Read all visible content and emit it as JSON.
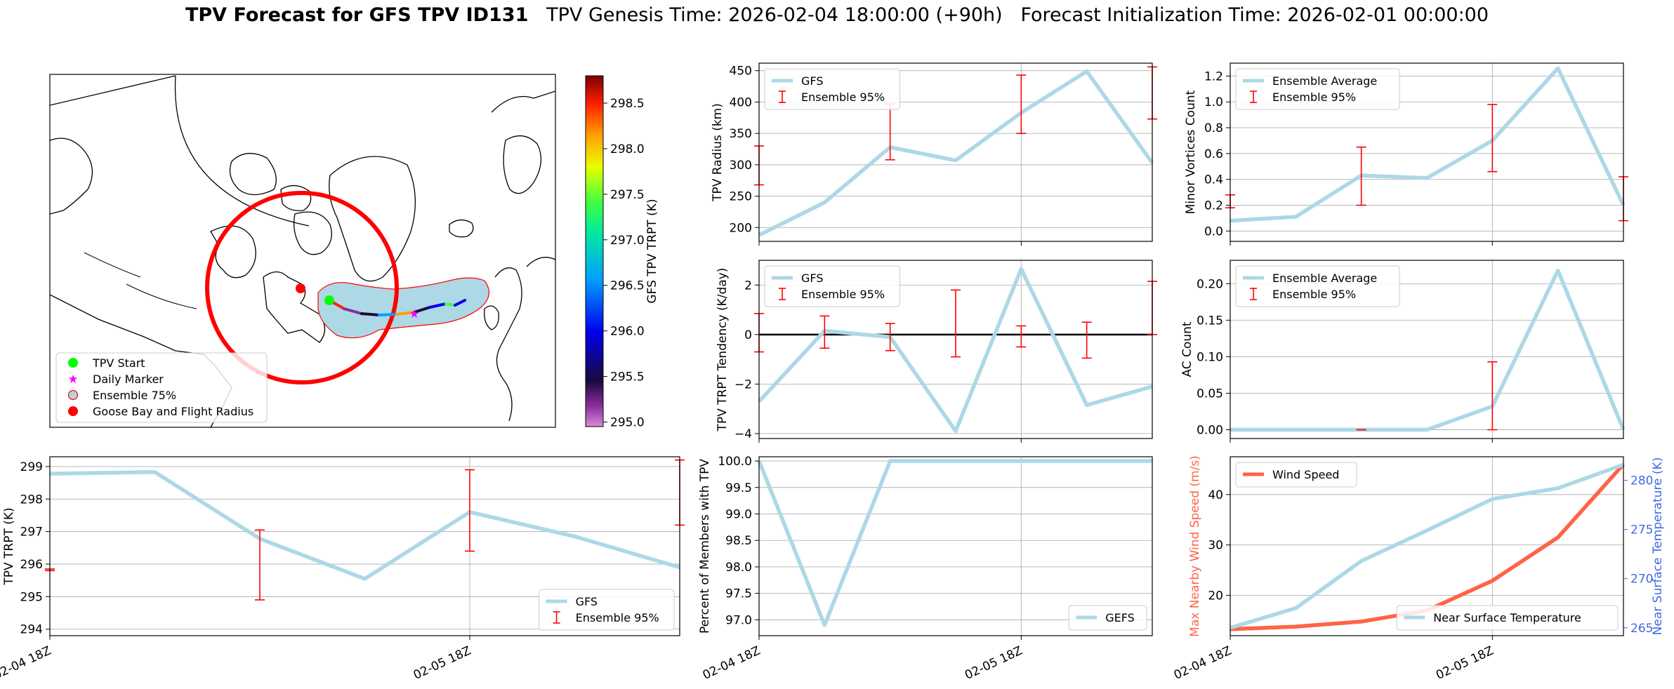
{
  "title": {
    "bold": "TPV Forecast for GFS TPV ID131",
    "genesis": "TPV Genesis Time: 2026-02-04 18:00:00 (+90h)",
    "init": "Forecast Initialization Time: 2026-02-01 00:00:00"
  },
  "colors": {
    "line": "#add8e6",
    "error": "#ff0000",
    "wind": "#ff6347",
    "temp_axis": "#4169e1",
    "wind_axis": "#ff6347",
    "zero_line": "#000000",
    "grid": "#b0b0b0",
    "circle": "#ff0000",
    "shade": "#add8e6",
    "start": "#00ff00",
    "marker": "#ff00ff"
  },
  "map": {
    "colorbar": {
      "label": "GFS TPV TRPT (K)",
      "min": 294.95,
      "max": 298.8,
      "ticks": [
        295.0,
        295.5,
        296.0,
        296.5,
        297.0,
        297.5,
        298.0,
        298.5
      ],
      "tick_labels": [
        "295.0",
        "295.5",
        "296.0",
        "296.5",
        "297.0",
        "297.5",
        "298.0",
        "298.5"
      ]
    },
    "legend": [
      {
        "label": "TPV Start",
        "marker": "circle",
        "color": "#00ff00"
      },
      {
        "label": "Daily Marker",
        "marker": "star",
        "color": "#ff00ff"
      },
      {
        "label": "Ensemble 75%",
        "marker": "ring",
        "color": "#add8e6"
      },
      {
        "label": "Goose Bay and Flight Radius",
        "marker": "circle",
        "color": "#ff0000"
      }
    ]
  },
  "x_tick_labels": [
    "02-04 18Z",
    "02-05 18Z"
  ],
  "chart_data": [
    {
      "id": "trpt",
      "type": "line",
      "title": "",
      "xlabel": "",
      "ylabel": "TPV TRPT (K)",
      "x": [
        0,
        6,
        12,
        18,
        24,
        30,
        36
      ],
      "xlim": [
        0,
        36
      ],
      "ylim": [
        293.8,
        299.3
      ],
      "yticks": [
        294,
        295,
        296,
        297,
        298,
        299
      ],
      "ytick_labels": [
        "294",
        "295",
        "296",
        "297",
        "298",
        "299"
      ],
      "xtick_values": [
        0,
        24
      ],
      "series": [
        {
          "name": "GFS",
          "values": [
            298.78,
            298.83,
            296.78,
            295.55,
            297.6,
            296.85,
            295.9
          ]
        }
      ],
      "errorbars": {
        "name": "Ensemble 95%",
        "points": [
          {
            "x": 0,
            "low": 295.8,
            "high": 295.85
          },
          {
            "x": 12,
            "low": 294.9,
            "high": 297.05
          },
          {
            "x": 24,
            "low": 296.4,
            "high": 298.9
          },
          {
            "x": 36,
            "low": 297.2,
            "high": 299.2
          }
        ]
      },
      "legend": {
        "loc": "lower-right",
        "entries": [
          {
            "label": "GFS",
            "kind": "line"
          },
          {
            "label": "Ensemble 95%",
            "kind": "errorbar"
          }
        ]
      },
      "xticklabels_shown": true
    },
    {
      "id": "radius",
      "type": "line",
      "ylabel": "TPV Radius (km)",
      "x": [
        0,
        6,
        12,
        18,
        24,
        30,
        36
      ],
      "xlim": [
        0,
        36
      ],
      "ylim": [
        178,
        462
      ],
      "yticks": [
        200,
        250,
        300,
        350,
        400,
        450
      ],
      "ytick_labels": [
        "200",
        "250",
        "300",
        "350",
        "400",
        "450"
      ],
      "xtick_values": [
        0,
        24
      ],
      "series": [
        {
          "name": "GFS",
          "values": [
            188,
            240,
            328,
            307,
            383,
            449,
            303
          ]
        }
      ],
      "errorbars": {
        "name": "Ensemble 95%",
        "points": [
          {
            "x": 0,
            "low": 268,
            "high": 330
          },
          {
            "x": 12,
            "low": 308,
            "high": 397
          },
          {
            "x": 24,
            "low": 350,
            "high": 443
          },
          {
            "x": 36,
            "low": 373,
            "high": 456
          }
        ]
      },
      "legend": {
        "loc": "upper-left",
        "entries": [
          {
            "label": "GFS",
            "kind": "line"
          },
          {
            "label": "Ensemble 95%",
            "kind": "errorbar"
          }
        ]
      },
      "xticklabels_shown": false
    },
    {
      "id": "tendency",
      "type": "line",
      "ylabel": "TPV TRPT Tendency (K/day)",
      "x": [
        0,
        6,
        12,
        18,
        24,
        30,
        36
      ],
      "xlim": [
        0,
        36
      ],
      "ylim": [
        -4.2,
        3.0
      ],
      "yticks": [
        -4,
        -2,
        0,
        2
      ],
      "ytick_labels": [
        "−4",
        "−2",
        "0",
        "2"
      ],
      "xtick_values": [
        0,
        24
      ],
      "zero_line": 0,
      "series": [
        {
          "name": "GFS",
          "values": [
            -2.7,
            0.15,
            -0.1,
            -3.9,
            2.65,
            -2.85,
            -2.1
          ]
        }
      ],
      "errorbars": {
        "name": "Ensemble 95%",
        "points": [
          {
            "x": 0,
            "low": -0.7,
            "high": 0.85
          },
          {
            "x": 6,
            "low": -0.55,
            "high": 0.75
          },
          {
            "x": 12,
            "low": -0.65,
            "high": 0.45
          },
          {
            "x": 18,
            "low": -0.9,
            "high": 1.8
          },
          {
            "x": 24,
            "low": -0.5,
            "high": 0.35
          },
          {
            "x": 30,
            "low": -0.95,
            "high": 0.5
          },
          {
            "x": 36,
            "low": 0.0,
            "high": 2.15
          }
        ]
      },
      "legend": {
        "loc": "upper-left",
        "entries": [
          {
            "label": "GFS",
            "kind": "line"
          },
          {
            "label": "Ensemble 95%",
            "kind": "errorbar"
          }
        ]
      },
      "xticklabels_shown": false
    },
    {
      "id": "members",
      "type": "line",
      "ylabel": "Percent of Members with TPV",
      "x": [
        0,
        6,
        12,
        18,
        24,
        30,
        36
      ],
      "xlim": [
        0,
        36
      ],
      "ylim": [
        96.7,
        100.08
      ],
      "yticks": [
        97.0,
        97.5,
        98.0,
        98.5,
        99.0,
        99.5,
        100.0
      ],
      "ytick_labels": [
        "97.0",
        "97.5",
        "98.0",
        "98.5",
        "99.0",
        "99.5",
        "100.0"
      ],
      "xtick_values": [
        0,
        24
      ],
      "series": [
        {
          "name": "GEFS",
          "values": [
            100.0,
            96.9,
            100.0,
            100.0,
            100.0,
            100.0,
            100.0
          ]
        }
      ],
      "legend": {
        "loc": "lower-right",
        "entries": [
          {
            "label": "GEFS",
            "kind": "line"
          }
        ]
      },
      "xticklabels_shown": true
    },
    {
      "id": "minor",
      "type": "line",
      "ylabel": "Minor Vortices Count",
      "x": [
        0,
        6,
        12,
        18,
        24,
        30,
        36
      ],
      "xlim": [
        0,
        36
      ],
      "ylim": [
        -0.08,
        1.3
      ],
      "yticks": [
        0.0,
        0.2,
        0.4,
        0.6,
        0.8,
        1.0,
        1.2
      ],
      "ytick_labels": [
        "0.0",
        "0.2",
        "0.4",
        "0.6",
        "0.8",
        "1.0",
        "1.2"
      ],
      "xtick_values": [
        0,
        24
      ],
      "series": [
        {
          "name": "Ensemble Average",
          "values": [
            0.08,
            0.11,
            0.43,
            0.41,
            0.7,
            1.26,
            0.2
          ]
        }
      ],
      "errorbars": {
        "name": "Ensemble 95%",
        "points": [
          {
            "x": 0,
            "low": 0.18,
            "high": 0.28
          },
          {
            "x": 12,
            "low": 0.2,
            "high": 0.65
          },
          {
            "x": 24,
            "low": 0.46,
            "high": 0.98
          },
          {
            "x": 36,
            "low": 0.08,
            "high": 0.42
          }
        ]
      },
      "legend": {
        "loc": "upper-left",
        "entries": [
          {
            "label": "Ensemble Average",
            "kind": "line"
          },
          {
            "label": "Ensemble 95%",
            "kind": "errorbar"
          }
        ]
      },
      "xticklabels_shown": false
    },
    {
      "id": "ac",
      "type": "line",
      "ylabel": "AC Count",
      "x": [
        0,
        6,
        12,
        18,
        24,
        30,
        36
      ],
      "xlim": [
        0,
        36
      ],
      "ylim": [
        -0.012,
        0.232
      ],
      "yticks": [
        0.0,
        0.05,
        0.1,
        0.15,
        0.2
      ],
      "ytick_labels": [
        "0.00",
        "0.05",
        "0.10",
        "0.15",
        "0.20"
      ],
      "xtick_values": [
        0,
        24
      ],
      "series": [
        {
          "name": "Ensemble Average",
          "values": [
            0.0,
            0.0,
            0.0,
            0.0,
            0.032,
            0.218,
            0.0
          ]
        }
      ],
      "errorbars": {
        "name": "Ensemble 95%",
        "points": [
          {
            "x": 12,
            "low": 0.0,
            "high": 0.0
          },
          {
            "x": 24,
            "low": 0.0,
            "high": 0.093
          }
        ]
      },
      "legend": {
        "loc": "upper-left",
        "entries": [
          {
            "label": "Ensemble Average",
            "kind": "line"
          },
          {
            "label": "Ensemble 95%",
            "kind": "errorbar"
          }
        ]
      },
      "xticklabels_shown": false
    },
    {
      "id": "wind",
      "type": "line",
      "ylabel": "Max Nearby Wind Speed (m/s)",
      "ylabel2": "Near Surface Temperature (K)",
      "x": [
        0,
        6,
        12,
        18,
        24,
        30,
        36
      ],
      "xlim": [
        0,
        36
      ],
      "ylim": [
        12,
        47.5
      ],
      "yticks": [
        20,
        30,
        40
      ],
      "ytick_labels": [
        "20",
        "30",
        "40"
      ],
      "ylim2": [
        264.2,
        282.4
      ],
      "yticks2": [
        265,
        270,
        275,
        280
      ],
      "ytick_labels2": [
        "265",
        "270",
        "275",
        "280"
      ],
      "xtick_values": [
        0,
        24
      ],
      "series": [
        {
          "name": "Wind Speed",
          "axis": "left",
          "values": [
            13.3,
            13.8,
            14.8,
            17.0,
            22.9,
            31.5,
            46.0
          ]
        },
        {
          "name": "Near Surface Temperature",
          "axis": "right",
          "values": [
            265.0,
            267.0,
            271.8,
            274.9,
            278.1,
            279.2,
            281.6
          ]
        }
      ],
      "legend": {
        "loc": "upper-left",
        "entries": [
          {
            "label": "Wind Speed",
            "kind": "line"
          }
        ]
      },
      "legend2": {
        "loc": "lower-right",
        "entries": [
          {
            "label": "Near Surface Temperature",
            "kind": "line"
          }
        ]
      },
      "xticklabels_shown": true
    }
  ]
}
